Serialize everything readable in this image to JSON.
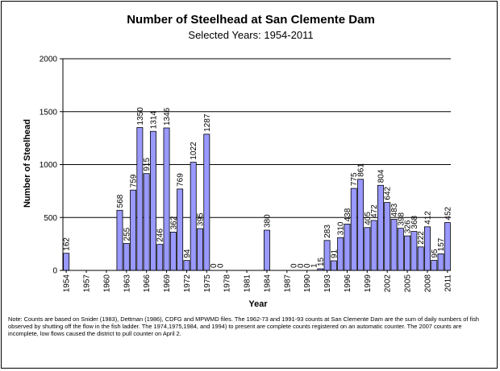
{
  "chart_data": {
    "type": "bar",
    "title": "Number of Steelhead at San Clemente Dam",
    "subtitle": "Selected Years: 1954-2011",
    "xlabel": "Year",
    "ylabel": "Number of Steelhead",
    "ylim": [
      0,
      2000
    ],
    "yticks": [
      0,
      500,
      1000,
      1500,
      2000
    ],
    "grid": true,
    "legend": "none",
    "bar_color": "#9999ff",
    "x_tick_labels": [
      "1954",
      "1957",
      "1960",
      "1963",
      "1966",
      "1969",
      "1972",
      "1975",
      "1978",
      "1981",
      "1984",
      "1987",
      "1990",
      "1993",
      "1996",
      "1999",
      "2002",
      "2005",
      "2008",
      "2011"
    ],
    "categories": [
      1954,
      1955,
      1956,
      1957,
      1958,
      1959,
      1960,
      1961,
      1962,
      1963,
      1964,
      1965,
      1966,
      1967,
      1968,
      1969,
      1970,
      1971,
      1972,
      1973,
      1974,
      1975,
      1976,
      1977,
      1978,
      1979,
      1980,
      1981,
      1982,
      1983,
      1984,
      1985,
      1986,
      1987,
      1988,
      1989,
      1990,
      1991,
      1992,
      1993,
      1994,
      1995,
      1996,
      1997,
      1998,
      1999,
      2000,
      2001,
      2002,
      2003,
      2004,
      2005,
      2006,
      2007,
      2008,
      2009,
      2010,
      2011
    ],
    "values": [
      162,
      null,
      null,
      null,
      null,
      null,
      null,
      null,
      568,
      255,
      759,
      1350,
      915,
      1314,
      246,
      1346,
      362,
      769,
      94,
      1022,
      395,
      1287,
      0,
      0,
      null,
      null,
      null,
      null,
      null,
      null,
      380,
      null,
      null,
      null,
      0,
      0,
      0,
      1,
      15,
      283,
      91,
      310,
      438,
      775,
      861,
      405,
      472,
      804,
      642,
      483,
      398,
      326,
      368,
      222,
      412,
      95,
      157,
      452
    ],
    "labels": [
      "162",
      null,
      null,
      null,
      null,
      null,
      null,
      null,
      "568",
      "255",
      "759",
      "1350",
      "915",
      "1314",
      "246",
      "1346",
      "362",
      "769",
      "94",
      "1022",
      "395",
      "1287",
      "0",
      "0",
      null,
      null,
      null,
      null,
      null,
      null,
      "380",
      null,
      null,
      null,
      "0",
      "0",
      "0",
      "1",
      "15",
      "283",
      "91",
      "310",
      "438",
      "775",
      "861",
      "405",
      "472",
      "804",
      "642",
      "483",
      "398",
      "326",
      "368",
      "222",
      "412",
      "95",
      "157",
      "452"
    ]
  },
  "note": "Note:   Counts are based on Snider (1983), Dettman (1986), CDFG and MPWMD files. The 1962-73 and 1991-93 counts at San Clemente Dam are the sum of daily numbers of fish observed by shutting off the flow in the fish ladder.  The 1974,1975,1984,  and 1994) to present are complete counts registered on an automatic counter. The 2007 counts are incomplete, low flows caused the district to pull counter on April 2."
}
